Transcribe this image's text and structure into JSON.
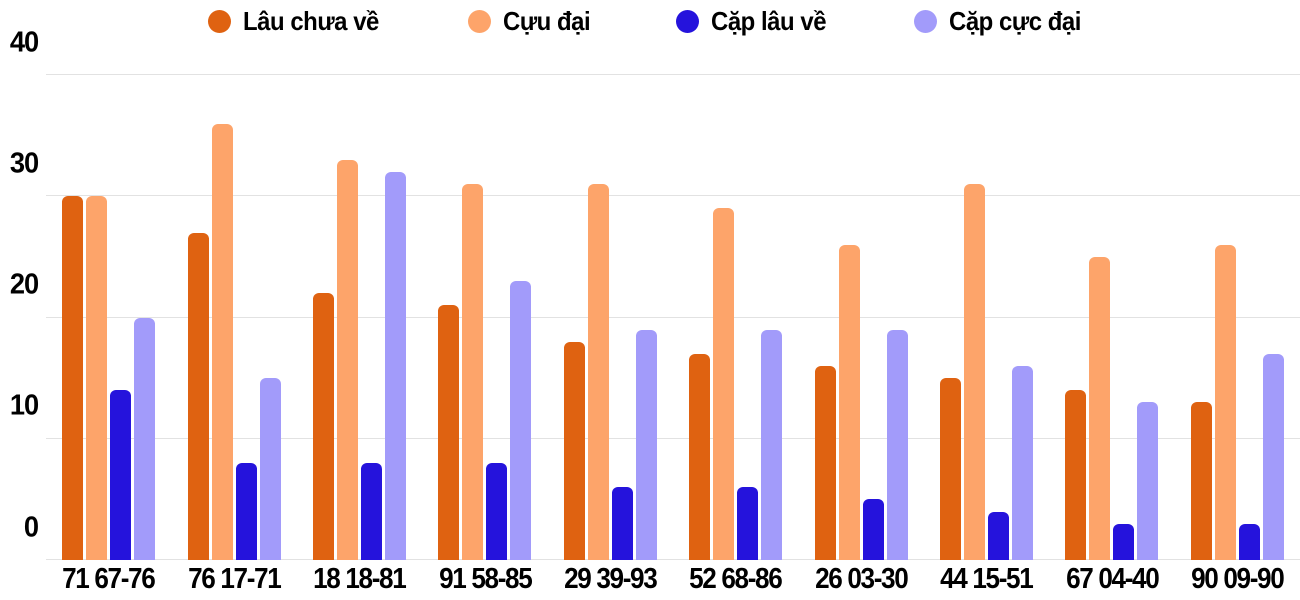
{
  "chart_data": {
    "type": "bar",
    "title": "",
    "xlabel": "",
    "ylabel": "",
    "categories": [
      "71 67-76",
      "76 17-71",
      "18 18-81",
      "91 58-85",
      "29 39-93",
      "52 68-86",
      "26 03-30",
      "44 15-51",
      "67 04-40",
      "90 09-90"
    ],
    "series": [
      {
        "name": "Lâu chưa về",
        "color": "#df6211",
        "values": [
          30,
          27,
          22,
          21,
          18,
          17,
          16,
          15,
          14,
          13
        ]
      },
      {
        "name": "Cựu đại",
        "color": "#fda46a",
        "values": [
          30,
          36,
          33,
          31,
          31,
          29,
          26,
          31,
          25,
          26
        ]
      },
      {
        "name": "Cặp lâu về",
        "color": "#2513dc",
        "values": [
          14,
          8,
          8,
          8,
          6,
          6,
          5,
          4,
          3,
          3
        ]
      },
      {
        "name": "Cặp cực đại",
        "color": "#a29bfa",
        "values": [
          20,
          15,
          32,
          23,
          19,
          19,
          19,
          16,
          13,
          17
        ]
      }
    ],
    "y_ticks": [
      0,
      10,
      20,
      30,
      40
    ],
    "ylim": [
      0,
      40
    ],
    "grid": true,
    "gridline_color": "#e2e2e2",
    "legend_position": "top",
    "legend_entries": [
      "Lâu chưa về",
      "Cựu đại",
      "Cặp lâu về",
      "Cặp cực đại"
    ]
  }
}
